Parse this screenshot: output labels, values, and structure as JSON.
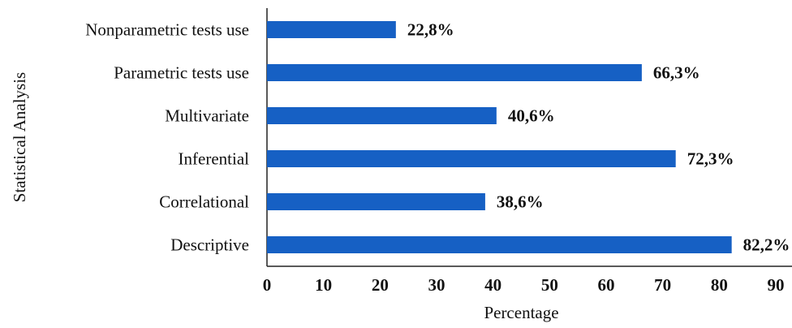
{
  "chart_data": {
    "type": "bar",
    "orientation": "horizontal",
    "categories": [
      "Nonparametric tests use",
      "Parametric tests use",
      "Multivariate",
      "Inferential",
      "Correlational",
      "Descriptive"
    ],
    "values": [
      22.8,
      66.3,
      40.6,
      72.3,
      38.6,
      82.2
    ],
    "value_labels": [
      "22,8%",
      "66,3%",
      "40,6%",
      "72,3%",
      "38,6%",
      "82,2%"
    ],
    "xlabel": "Percentage",
    "ylabel": "Statistical Analysis",
    "xlim": [
      0,
      90
    ],
    "xticks": [
      "0",
      "10",
      "20",
      "30",
      "40",
      "50",
      "60",
      "70",
      "80",
      "90"
    ],
    "grid": false,
    "bar_color": "#1660c4"
  }
}
